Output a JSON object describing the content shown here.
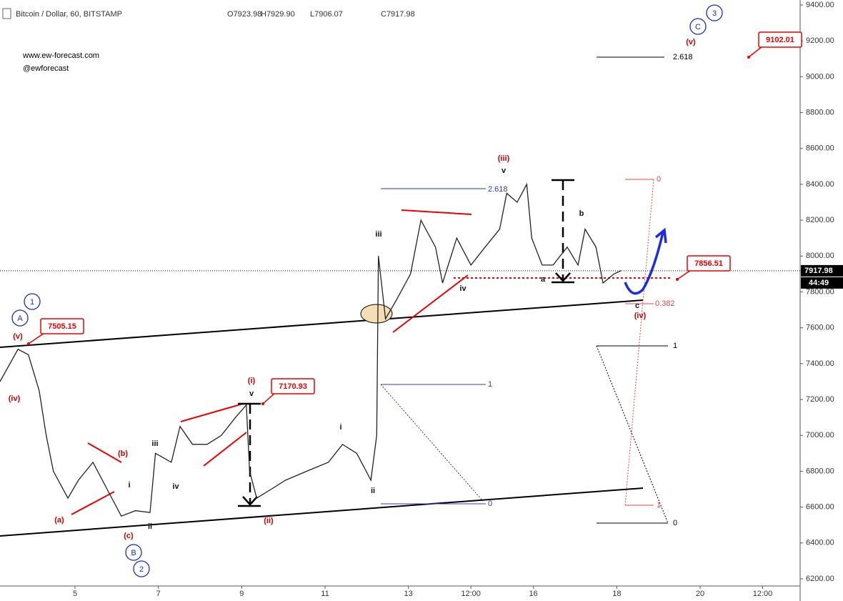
{
  "chart_data": {
    "type": "line",
    "title": "Bitcoin / Dollar, 60, BITSTAMP",
    "ohlc": [
      "O7923.98",
      "H7929.90",
      "L7906.07",
      "C7917.98"
    ],
    "watermark": [
      "www.ew-forecast.com",
      "@ewforecast"
    ],
    "series": [
      {
        "name": "BTCUSD",
        "color": "#222222",
        "x": [
          3.2,
          3.63,
          3.88,
          4.14,
          4.31,
          4.48,
          4.83,
          5.08,
          5.43,
          5.77,
          6.11,
          6.45,
          6.8,
          6.93,
          7.31,
          7.52,
          7.82,
          8.17,
          8.51,
          8.85,
          9.11,
          9.19,
          9.36,
          9.71,
          10.05,
          10.56,
          11.08,
          11.42,
          11.76,
          12.1,
          12.24,
          12.28,
          12.45,
          12.7,
          13.05,
          13.3,
          13.65,
          13.82,
          14.16,
          14.5,
          14.84,
          15.19,
          15.36,
          15.61,
          15.84,
          15.96,
          16.21,
          16.47,
          16.81,
          17.07,
          17.24,
          17.5,
          17.67,
          17.93,
          18.1
        ],
        "values": [
          7300,
          7480,
          7450,
          7250,
          7000,
          6800,
          6650,
          6750,
          6850,
          6700,
          6550,
          6580,
          6570,
          6900,
          6850,
          7050,
          6950,
          6950,
          7000,
          7100,
          7170,
          6800,
          6650,
          6700,
          6750,
          6800,
          6850,
          6950,
          6900,
          6750,
          7000,
          8000,
          7650,
          7750,
          7900,
          8200,
          8050,
          7850,
          8100,
          7950,
          8050,
          8150,
          8350,
          8300,
          8400,
          8100,
          7950,
          7950,
          8050,
          7950,
          8150,
          8050,
          7850,
          7900,
          7918
        ]
      }
    ],
    "last_value": 7917.98,
    "countdown": "44:49",
    "price_labels": [
      7505.15,
      7170.93,
      7856.51,
      9102.01
    ],
    "wave_labels": [
      "1",
      "A",
      "B",
      "2",
      "C",
      "3",
      "(v)",
      "(iv)",
      "(a)",
      "(b)",
      "(c)",
      "(i)",
      "(ii)",
      "(iii)",
      "(iv)",
      "(v)",
      "i",
      "ii",
      "iii",
      "iv",
      "v",
      "i",
      "ii",
      "iii",
      "iv",
      "v",
      "a",
      "b",
      "c"
    ],
    "fib_labels": [
      "2.618",
      "2.618",
      "1",
      "0",
      "1",
      "0",
      "0",
      "1",
      "0.382"
    ],
    "xlim": [
      3.2,
      22.4
    ],
    "xticks": [
      5,
      7,
      9,
      11,
      13,
      {
        "value": 14.5,
        "label": "12:00"
      },
      16,
      18,
      20,
      {
        "value": 21.5,
        "label": "12:00"
      }
    ],
    "ylim": [
      6200,
      9400
    ],
    "yticks": [
      {
        "value": 6200,
        "label": "6200.00"
      },
      {
        "value": 6400,
        "label": "6400.00"
      },
      {
        "value": 6600,
        "label": "6600.00"
      },
      {
        "value": 6800,
        "label": "6800.00"
      },
      {
        "value": 7000,
        "label": "7000.00"
      },
      {
        "value": 7200,
        "label": "7200.00"
      },
      {
        "value": 7400,
        "label": "7400.00"
      },
      {
        "value": 7600,
        "label": "7600.00"
      },
      {
        "value": 7800,
        "label": "7800.00"
      },
      {
        "value": 8000,
        "label": "8000.00"
      },
      {
        "value": 8200,
        "label": "8200.00"
      },
      {
        "value": 8400,
        "label": "8400.00"
      },
      {
        "value": 8600,
        "label": "8600.00"
      },
      {
        "value": 8800,
        "label": "8800.00"
      },
      {
        "value": 9000,
        "label": "9000.00"
      },
      {
        "value": 9200,
        "label": "9200.00"
      },
      {
        "value": 9400,
        "label": "9400.00"
      }
    ]
  }
}
